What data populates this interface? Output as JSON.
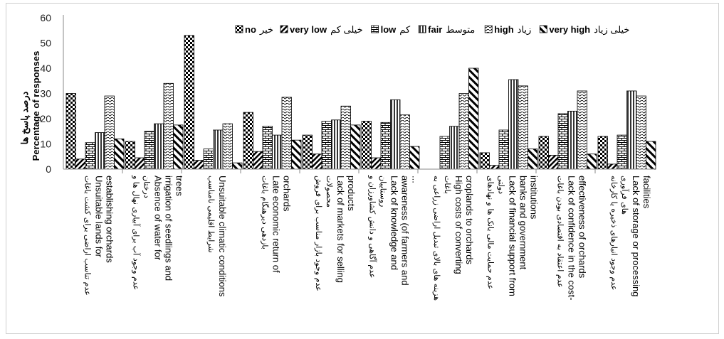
{
  "chart_data": {
    "type": "bar",
    "ylabel_fa": "درصد پاسخ ها",
    "ylabel_en": "Percentage of responses",
    "ylim": [
      0,
      60
    ],
    "yticks": [
      "0",
      "10",
      "20",
      "30",
      "40",
      "50",
      "60"
    ],
    "legend_position": "top",
    "legend": [
      {
        "en": "no",
        "fa": "خیر"
      },
      {
        "en": "very low",
        "fa": "خیلی کم"
      },
      {
        "en": "low",
        "fa": "کم"
      },
      {
        "en": "fair",
        "fa": "متوسط"
      },
      {
        "en": "high",
        "fa": "زیاد"
      },
      {
        "en": "very high",
        "fa": "خیلی زیاد"
      }
    ],
    "categories": [
      {
        "fa": [
          "عدم تناسب اراضی برای کشت باغات"
        ],
        "en": [
          "Unsuitable lands for",
          "establishing orchards"
        ]
      },
      {
        "fa": [
          "عدم وجود آب برای آبیاری نهال ها و",
          "درختان"
        ],
        "en": [
          "Absence of water for",
          "irrigation of seedlings and",
          "trees"
        ]
      },
      {
        "fa": [
          "شرایط اقلیمی نامناسب"
        ],
        "en": [
          "Unsuitable climatic conditions"
        ]
      },
      {
        "fa": [
          "بازدهی دیرهنگام باغات"
        ],
        "en": [
          "Late economic return of",
          "orchards"
        ]
      },
      {
        "fa": [
          "عدم وجود بازار مناسب برای فروش",
          "محصولات"
        ],
        "en": [
          "Lack of markets for selling",
          "products"
        ]
      },
      {
        "fa": [
          "عدم آگاهی و دانش کشاورزان و",
          "روستاییان"
        ],
        "en": [
          "Lack of knowledge and",
          "awareness (of farmers and",
          "..."
        ]
      },
      {
        "fa": [
          "هزینه های بالای تبدیل اراضی زراعی به",
          "باغات"
        ],
        "en": [
          "High costs of converting",
          "croplands to orchards"
        ]
      },
      {
        "fa": [
          "عدم حمایت مالی بانک ها و نهادهای",
          "دولتی"
        ],
        "en": [
          "Lack of financial support from",
          "banks and government",
          "institutions"
        ]
      },
      {
        "fa": [
          "عدم اعتقاد به اقتصادی بودن باغات"
        ],
        "en": [
          "Lack of confidence in the cost-",
          "effectiveness of orchards"
        ]
      },
      {
        "fa": [
          "عدم وجود انبارهای ذخیره یا کارخانه",
          "های فرآوری"
        ],
        "en": [
          "Lack of storage or processing",
          "facilities"
        ]
      }
    ],
    "series": [
      {
        "name": "no",
        "pattern": "checker",
        "values": [
          30,
          11,
          53,
          22.5,
          13.5,
          19,
          0,
          6.5,
          13,
          13
        ]
      },
      {
        "name": "very low",
        "pattern": "diagonal",
        "values": [
          4,
          4.5,
          3.5,
          7,
          6,
          4.5,
          0,
          1.5,
          5.5,
          2
        ]
      },
      {
        "name": "low",
        "pattern": "brick",
        "values": [
          10.5,
          15,
          8,
          17,
          19,
          18.5,
          13,
          15.5,
          22,
          13.5
        ]
      },
      {
        "name": "fair",
        "pattern": "vertical",
        "values": [
          14.5,
          18,
          15.5,
          13.5,
          19.5,
          27.5,
          17,
          35.5,
          23,
          31
        ]
      },
      {
        "name": "high",
        "pattern": "wave",
        "values": [
          29,
          34,
          18,
          28.5,
          25,
          21.5,
          30,
          33,
          31,
          29
        ]
      },
      {
        "name": "very high",
        "pattern": "hatch",
        "values": [
          12,
          17.5,
          2.5,
          11.5,
          17.5,
          9,
          40,
          8,
          6,
          11
        ]
      }
    ]
  }
}
